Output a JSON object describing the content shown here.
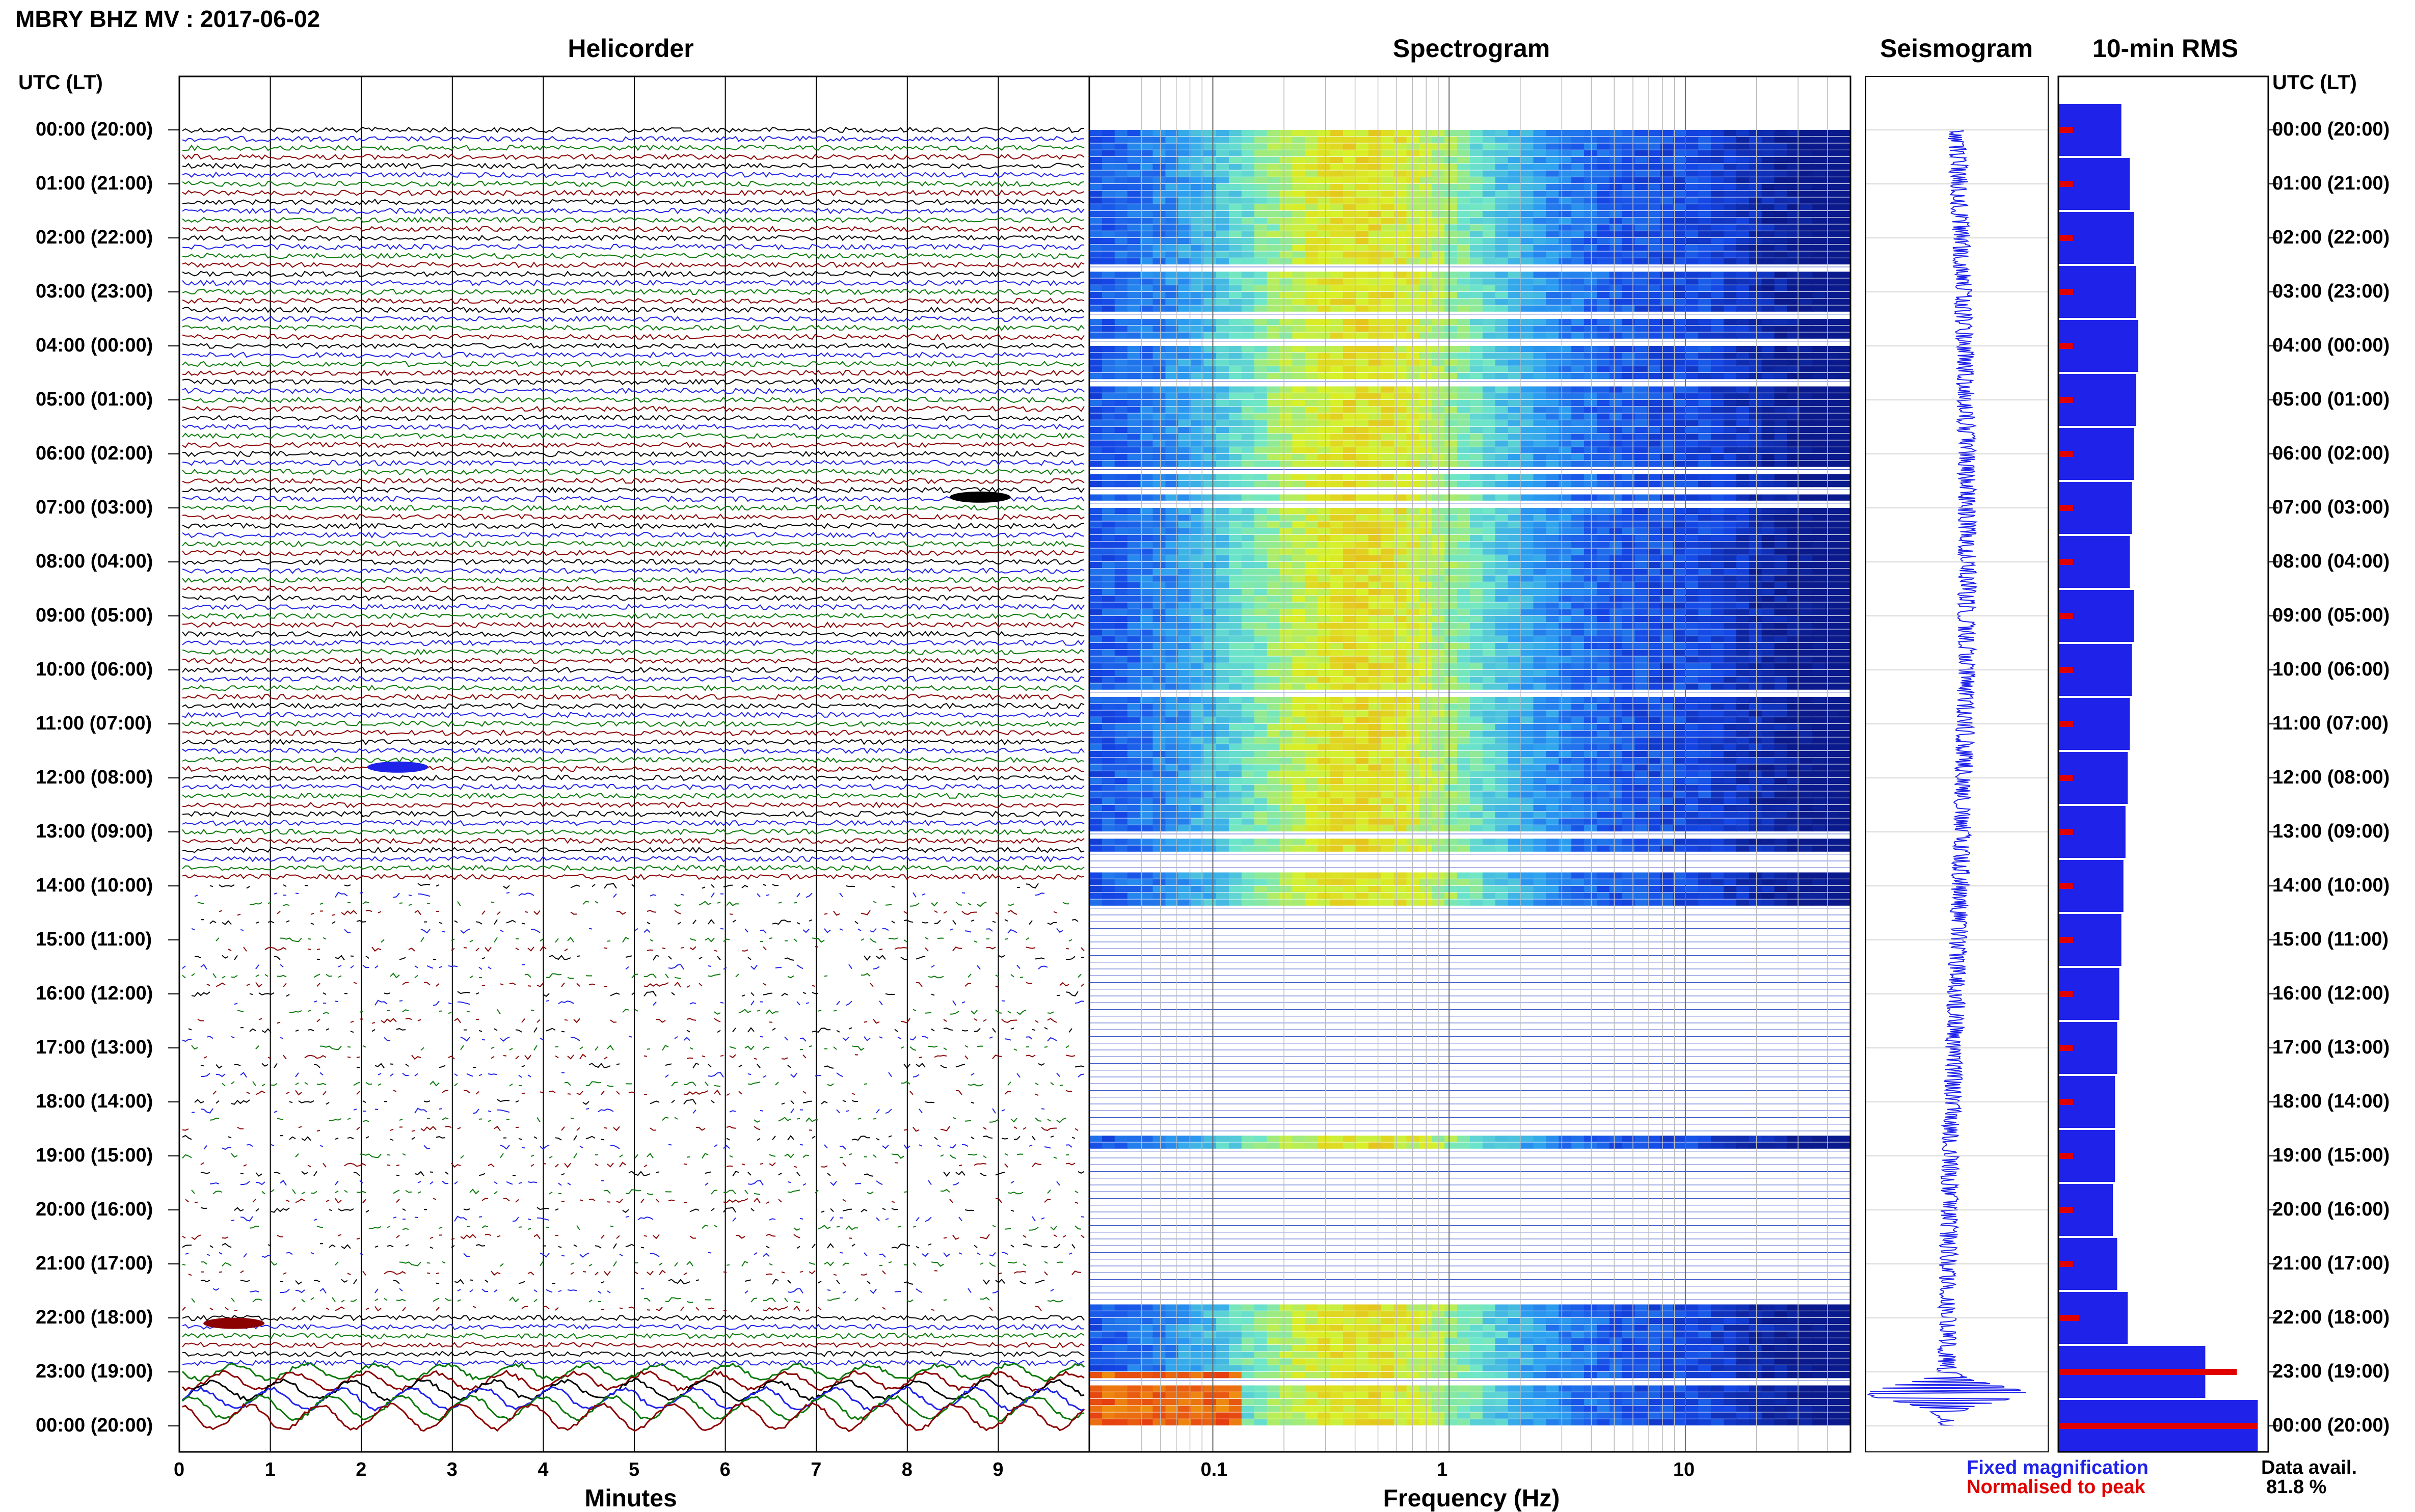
{
  "header": {
    "title": "MBRY BHZ MV : 2017-06-02",
    "utc_label_left": "UTC (LT)",
    "utc_label_right": "UTC (LT)"
  },
  "panels": {
    "helicorder": "Helicorder",
    "spectrogram": "Spectrogram",
    "seismogram": "Seismogram",
    "rms": "10-min RMS"
  },
  "axes": {
    "minutes_title": "Minutes",
    "minutes_ticks": [
      "0",
      "1",
      "2",
      "3",
      "4",
      "5",
      "6",
      "7",
      "8",
      "9"
    ],
    "frequency_title": "Frequency (Hz)",
    "frequency_ticks": [
      "0.1",
      "1",
      "10"
    ]
  },
  "time_labels": [
    "00:00 (20:00)",
    "01:00 (21:00)",
    "02:00 (22:00)",
    "03:00 (23:00)",
    "04:00 (00:00)",
    "05:00 (01:00)",
    "06:00 (02:00)",
    "07:00 (03:00)",
    "08:00 (04:00)",
    "09:00 (05:00)",
    "10:00 (06:00)",
    "11:00 (07:00)",
    "12:00 (08:00)",
    "13:00 (09:00)",
    "14:00 (10:00)",
    "15:00 (11:00)",
    "16:00 (12:00)",
    "17:00 (13:00)",
    "18:00 (14:00)",
    "19:00 (15:00)",
    "20:00 (16:00)",
    "21:00 (17:00)",
    "22:00 (18:00)",
    "23:00 (19:00)",
    "00:00 (20:00)"
  ],
  "legend": {
    "fixed": "Fixed magnification",
    "normalised": "Normalised to peak",
    "fixed_color": "#1f22e8",
    "normalised_color": "#e00000"
  },
  "availability": {
    "label": "Data avail.",
    "value": "81.8 %"
  },
  "chart_data": [
    {
      "type": "line",
      "title": "Helicorder",
      "xlabel": "Minutes",
      "xlim": [
        0,
        10
      ],
      "trace_colors": [
        "#000000",
        "#1f22e8",
        "#0a7a0a",
        "#8b0000"
      ],
      "rows_per_hour": 6,
      "hours": 24,
      "gap_hours": [
        14,
        15,
        16,
        17,
        18,
        19,
        20,
        21
      ],
      "events": [
        {
          "hour": 6.8,
          "minute": 8.8,
          "color": "#000000"
        },
        {
          "hour": 11.8,
          "minute": 2.4,
          "color": "#1f22e8"
        },
        {
          "hour": 22.1,
          "minute": 0.6,
          "color": "#8b0000"
        }
      ]
    },
    {
      "type": "heatmap",
      "title": "Spectrogram",
      "xlabel": "Frequency (Hz)",
      "xscale": "log",
      "xlim": [
        0.03,
        50
      ],
      "colormap": [
        "#0a1a8c",
        "#1446e6",
        "#2ca0f0",
        "#6ee6c8",
        "#d8f028",
        "#f0a010",
        "#e01010"
      ],
      "empty_hours": [
        [
          14.3,
          15.0
        ],
        [
          15.0,
          18.6
        ],
        [
          18.8,
          21.7
        ]
      ]
    },
    {
      "type": "line",
      "title": "Seismogram",
      "color": "#1f22e8",
      "peak_hour": 23.4
    },
    {
      "type": "bar",
      "title": "10-min RMS",
      "orientation": "horizontal",
      "series": [
        {
          "name": "Fixed magnification",
          "color": "#1f22e8",
          "values": [
            0.3,
            0.34,
            0.36,
            0.37,
            0.38,
            0.37,
            0.36,
            0.35,
            0.34,
            0.36,
            0.35,
            0.34,
            0.33,
            0.32,
            0.31,
            0.3,
            0.29,
            0.28,
            0.27,
            0.27,
            0.26,
            0.28,
            0.33,
            0.7,
            0.95
          ]
        },
        {
          "name": "Normalised to peak",
          "color": "#e00000",
          "values": [
            0.07,
            0.07,
            0.07,
            0.07,
            0.07,
            0.07,
            0.07,
            0.07,
            0.07,
            0.07,
            0.07,
            0.07,
            0.07,
            0.07,
            0.07,
            0.07,
            0.07,
            0.07,
            0.07,
            0.07,
            0.07,
            0.07,
            0.1,
            0.85,
            0.95
          ]
        }
      ]
    }
  ]
}
